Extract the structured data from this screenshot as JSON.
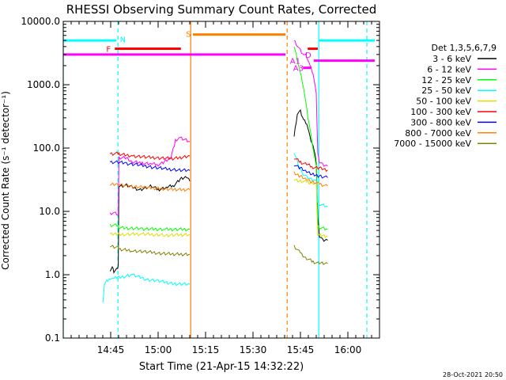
{
  "chart_data": {
    "type": "line",
    "title": "RHESSI Observing Summary Count Rates, Corrected",
    "xlabel": "Start Time (21-Apr-15 14:32:22)",
    "ylabel": "Corrected Count Rate (s⁻¹ detector⁻¹)",
    "yscale": "log",
    "ylim": [
      0.1,
      10000
    ],
    "xlim_min": [
      0,
      100
    ],
    "yticks": [
      0.1,
      1,
      10,
      100,
      1000,
      10000
    ],
    "ytick_labels": [
      "0.1",
      "1.0",
      "10.0",
      "100.0",
      "1000.0",
      "10000.0"
    ],
    "xticks": [
      15,
      30,
      45,
      60,
      75,
      90
    ],
    "xtick_labels": [
      "14:45",
      "15:00",
      "15:15",
      "15:30",
      "15:45",
      "16:00"
    ],
    "grid": false,
    "legend_title": "Det 1,3,5,6,7,9",
    "legend_position": "right",
    "footer_date": "28-Oct-2021 20:50",
    "series": [
      {
        "name": "3 - 6 keV",
        "color": "#000000",
        "segments": [
          [
            [
              14.8,
              1.2
            ],
            [
              15.5,
              1.3
            ],
            [
              16,
              1.1
            ],
            [
              17,
              1.2
            ],
            [
              17.4,
              1.4
            ],
            [
              17.6,
              25
            ],
            [
              20,
              26
            ],
            [
              24,
              22
            ],
            [
              28,
              25
            ],
            [
              30,
              22
            ],
            [
              33,
              24
            ],
            [
              35,
              26
            ],
            [
              37,
              32
            ],
            [
              39,
              35
            ],
            [
              40,
              30
            ]
          ],
          [
            [
              73,
              150
            ],
            [
              74,
              350
            ],
            [
              75,
              380
            ],
            [
              76,
              280
            ],
            [
              77,
              250
            ],
            [
              78,
              150
            ],
            [
              79,
              110
            ],
            [
              80,
              60
            ],
            [
              80.5,
              8
            ],
            [
              81,
              4
            ],
            [
              82,
              3.5
            ],
            [
              83.6,
              3.5
            ]
          ]
        ]
      },
      {
        "name": "6 - 12 keV",
        "color": "#ff00ff",
        "segments": [
          [
            [
              14.8,
              9
            ],
            [
              16,
              9.5
            ],
            [
              17.4,
              9
            ],
            [
              17.6,
              70
            ],
            [
              20,
              70
            ],
            [
              22,
              60
            ],
            [
              25,
              58
            ],
            [
              28,
              56
            ],
            [
              30,
              55
            ],
            [
              32,
              60
            ],
            [
              34,
              70
            ],
            [
              35.5,
              130
            ],
            [
              37,
              145
            ],
            [
              40,
              125
            ]
          ],
          [
            [
              73,
              5000
            ],
            [
              74,
              4200
            ],
            [
              75,
              3500
            ],
            [
              76,
              3000
            ],
            [
              77,
              2800
            ],
            [
              78,
              2000
            ],
            [
              79,
              1500
            ],
            [
              80,
              700
            ],
            [
              80.5,
              80
            ],
            [
              81,
              60
            ],
            [
              82,
              55
            ],
            [
              83.6,
              52
            ]
          ]
        ]
      },
      {
        "name": "12 - 25 keV",
        "color": "#00ff00",
        "segments": [
          [
            [
              14.8,
              6
            ],
            [
              17.4,
              6
            ],
            [
              17.6,
              5.5
            ],
            [
              25,
              5.3
            ],
            [
              32,
              5.2
            ],
            [
              40,
              5.2
            ]
          ],
          [
            [
              73,
              4000
            ],
            [
              74,
              2500
            ],
            [
              75,
              1500
            ],
            [
              76,
              900
            ],
            [
              77,
              400
            ],
            [
              78,
              200
            ],
            [
              79,
              100
            ],
            [
              80,
              50
            ],
            [
              80.5,
              6
            ],
            [
              81,
              5.5
            ],
            [
              83.6,
              5.2
            ]
          ]
        ]
      },
      {
        "name": "25 - 50 keV",
        "color": "#00ffff",
        "segments": [
          [
            [
              12.5,
              0.35
            ],
            [
              13,
              0.7
            ],
            [
              14.8,
              0.9
            ],
            [
              16,
              0.85
            ],
            [
              17.4,
              0.95
            ],
            [
              17.6,
              0.9
            ],
            [
              22,
              1.0
            ],
            [
              26,
              0.85
            ],
            [
              30,
              0.8
            ],
            [
              35,
              0.72
            ],
            [
              40,
              0.7
            ]
          ],
          [
            [
              73,
              85
            ],
            [
              74,
              60
            ],
            [
              75,
              45
            ],
            [
              76,
              38
            ],
            [
              77,
              35
            ],
            [
              78,
              33
            ],
            [
              79,
              32
            ],
            [
              80,
              30
            ],
            [
              80.5,
              14
            ],
            [
              81,
              13
            ],
            [
              83.6,
              12
            ]
          ]
        ]
      },
      {
        "name": "50 - 100 keV",
        "color": "#dddd00",
        "segments": [
          [
            [
              14.8,
              4.3
            ],
            [
              17.4,
              4.5
            ],
            [
              17.6,
              4.3
            ],
            [
              25,
              4.4
            ],
            [
              32,
              4.2
            ],
            [
              40,
              4.3
            ]
          ],
          [
            [
              73,
              32
            ],
            [
              75,
              30
            ],
            [
              77,
              29
            ],
            [
              79,
              28
            ],
            [
              80,
              27
            ],
            [
              80.5,
              4.2
            ],
            [
              83.6,
              4.1
            ]
          ]
        ]
      },
      {
        "name": "100 - 300 keV",
        "color": "#ff0000",
        "segments": [
          [
            [
              14.8,
              80
            ],
            [
              17.4,
              82
            ],
            [
              17.6,
              80
            ],
            [
              22,
              75
            ],
            [
              26,
              72
            ],
            [
              30,
              70
            ],
            [
              35,
              68
            ],
            [
              40,
              75
            ]
          ],
          [
            [
              73,
              70
            ],
            [
              75,
              60
            ],
            [
              77,
              55
            ],
            [
              79,
              50
            ],
            [
              81,
              48
            ],
            [
              83.6,
              45
            ]
          ]
        ]
      },
      {
        "name": "300 - 800 keV",
        "color": "#0000ff",
        "segments": [
          [
            [
              14.8,
              60
            ],
            [
              17.4,
              60
            ],
            [
              20,
              57
            ],
            [
              24,
              54
            ],
            [
              28,
              50
            ],
            [
              32,
              47
            ],
            [
              36,
              45
            ],
            [
              40,
              44
            ]
          ],
          [
            [
              73,
              55
            ],
            [
              75,
              48
            ],
            [
              77,
              42
            ],
            [
              79,
              38
            ],
            [
              81,
              36
            ],
            [
              83.6,
              34
            ]
          ]
        ]
      },
      {
        "name": "800 - 7000 keV",
        "color": "#ff7f00",
        "segments": [
          [
            [
              14.8,
              26
            ],
            [
              17.4,
              27
            ],
            [
              20,
              25
            ],
            [
              25,
              24
            ],
            [
              30,
              23
            ],
            [
              35,
              22
            ],
            [
              40,
              22
            ]
          ],
          [
            [
              73,
              40
            ],
            [
              75,
              36
            ],
            [
              77,
              32
            ],
            [
              79,
              29
            ],
            [
              81,
              27
            ],
            [
              83.6,
              25
            ]
          ]
        ]
      },
      {
        "name": "7000 - 15000 keV",
        "color": "#7f7f00",
        "segments": [
          [
            [
              14.8,
              2.8
            ],
            [
              17.4,
              2.7
            ],
            [
              17.6,
              2.5
            ],
            [
              22,
              2.4
            ],
            [
              26,
              2.3
            ],
            [
              30,
              2.2
            ],
            [
              35,
              2.1
            ],
            [
              40,
              2.1
            ]
          ],
          [
            [
              73,
              2.8
            ],
            [
              75,
              2.2
            ],
            [
              77,
              1.8
            ],
            [
              79,
              1.6
            ],
            [
              81,
              1.5
            ],
            [
              83.6,
              1.5
            ]
          ]
        ]
      }
    ],
    "annotations": {
      "vlines": [
        {
          "x": 0,
          "style": "solid",
          "color": "#00ffff"
        },
        {
          "x": 17.3,
          "style": "dashed",
          "color": "#00ffff"
        },
        {
          "x": 40.3,
          "style": "solid",
          "color": "#ff7f00"
        },
        {
          "x": 70.8,
          "style": "dashed",
          "color": "#ff7f00"
        },
        {
          "x": 80.8,
          "style": "solid",
          "color": "#00ffff"
        },
        {
          "x": 96,
          "style": "dashed",
          "color": "#00ffff"
        }
      ],
      "hbars": [
        {
          "x1": 0,
          "x2": 16.8,
          "y": 5000,
          "color": "#00ffff"
        },
        {
          "x1": 80.8,
          "x2": 98.5,
          "y": 5000,
          "color": "#00ffff"
        },
        {
          "x1": 16.3,
          "x2": 37.2,
          "y": 3700,
          "color": "#ff0000"
        },
        {
          "x1": 77.3,
          "x2": 80.5,
          "y": 3700,
          "color": "#ff0000"
        },
        {
          "x1": 41.0,
          "x2": 70.3,
          "y": 6200,
          "color": "#ff7f00"
        },
        {
          "x1": 0,
          "x2": 70.3,
          "y": 3000,
          "color": "#ff00ff"
        },
        {
          "x1": 79.2,
          "x2": 98.5,
          "y": 2400,
          "color": "#ff00ff"
        },
        {
          "x1": 75.8,
          "x2": 78.5,
          "y": 1850,
          "color": "#ff00ff"
        }
      ],
      "labels": [
        {
          "text": "N",
          "x": 17.9,
          "y": 5200,
          "color": "#00ffff"
        },
        {
          "text": "F",
          "x": 13.6,
          "y": 3700,
          "color": "#ff0000"
        },
        {
          "text": "S",
          "x": 38.8,
          "y": 6400,
          "color": "#ff7f00"
        },
        {
          "text": "D",
          "x": 76.5,
          "y": 3000,
          "color": "#ff00ff"
        },
        {
          "text": "A1",
          "x": 71.7,
          "y": 2400,
          "color": "#ff00ff"
        },
        {
          "text": "A3",
          "x": 72.7,
          "y": 1850,
          "color": "#ff00ff"
        }
      ]
    }
  }
}
